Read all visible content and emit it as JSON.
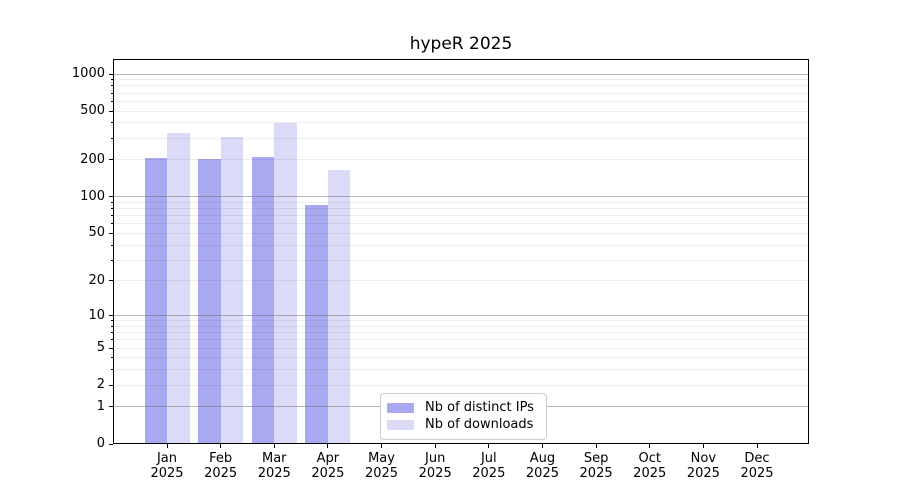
{
  "window": {
    "background": "#ffffff"
  },
  "chart_data": {
    "type": "bar",
    "title": "hypeR 2025",
    "xlabel": "",
    "ylabel": "",
    "yscale": "log1p",
    "grid": "horizontal",
    "categories": [
      "Jan",
      "Feb",
      "Mar",
      "Apr",
      "May",
      "Jun",
      "Jul",
      "Aug",
      "Sep",
      "Oct",
      "Nov",
      "Dec"
    ],
    "x_year_label": "2025",
    "series": [
      {
        "name": "Nb of distinct IPs",
        "color": "#a9a9f1",
        "values": [
          208,
          205,
          213,
          86,
          null,
          null,
          null,
          null,
          null,
          null,
          null,
          null
        ]
      },
      {
        "name": "Nb of downloads",
        "color": "#dbdbf8",
        "values": [
          334,
          310,
          398,
          166,
          null,
          null,
          null,
          null,
          null,
          null,
          null,
          null
        ]
      }
    ],
    "ytick_labels": [
      "0",
      "1",
      "2",
      "5",
      "10",
      "20",
      "50",
      "100",
      "200",
      "500",
      "1000"
    ],
    "ytick_values": [
      0,
      1,
      2,
      5,
      10,
      20,
      50,
      100,
      200,
      500,
      1000
    ],
    "grid_major_values": [
      1,
      10,
      100,
      1000
    ],
    "grid_minor_values": [
      2,
      3,
      4,
      5,
      6,
      7,
      8,
      9,
      20,
      30,
      40,
      50,
      60,
      70,
      80,
      90,
      200,
      300,
      400,
      500,
      600,
      700,
      800,
      900
    ],
    "ylim": [
      0,
      1320
    ],
    "legend_position": "lower center-left"
  },
  "colors": {
    "spine": "#000000",
    "grid_major": "#b6b6b6",
    "grid_minor": "#ededed",
    "legend_border": "#cccccc",
    "legend_background": "#ffffff",
    "text": "#000000"
  }
}
